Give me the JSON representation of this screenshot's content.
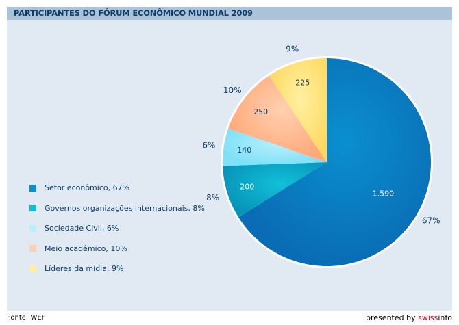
{
  "chart_data": {
    "type": "pie",
    "title": "PARTICIPANTES DO FÓRUM ECONÔMICO MUNDIAL 2009",
    "slices": [
      {
        "label": "Setor econômico, 67%",
        "value": 1590,
        "value_label": "1.590",
        "percent_label": "67%",
        "color": "#0a6cb4",
        "color2": "#0a8fd0",
        "text_color": "#ffffff"
      },
      {
        "label": "Governos organizações internacionais, 8%",
        "value": 200,
        "value_label": "200",
        "percent_label": "8%",
        "color": "#0894b8",
        "color2": "#10c0d8",
        "text_color": "#ffffff"
      },
      {
        "label": "Sociedade Civil, 6%",
        "value": 140,
        "value_label": "140",
        "percent_label": "6%",
        "color": "#7fe0f8",
        "color2": "#b8f0fc",
        "text_color": "#0d3d6b"
      },
      {
        "label": "Meio acadêmico, 10%",
        "value": 250,
        "value_label": "250",
        "percent_label": "10%",
        "color": "#ffa878",
        "color2": "#ffd0b0",
        "text_color": "#0d3d6b"
      },
      {
        "label": "Líderes da mídia, 9%",
        "value": 225,
        "value_label": "225",
        "percent_label": "9%",
        "color": "#ffd860",
        "color2": "#fff0a0",
        "text_color": "#0d3d6b"
      }
    ],
    "legend_position": "left"
  },
  "footer": {
    "source": "Fonte: WEF",
    "presented_by": "presented by ",
    "brand": "swiss",
    "brand_suffix": "info"
  }
}
